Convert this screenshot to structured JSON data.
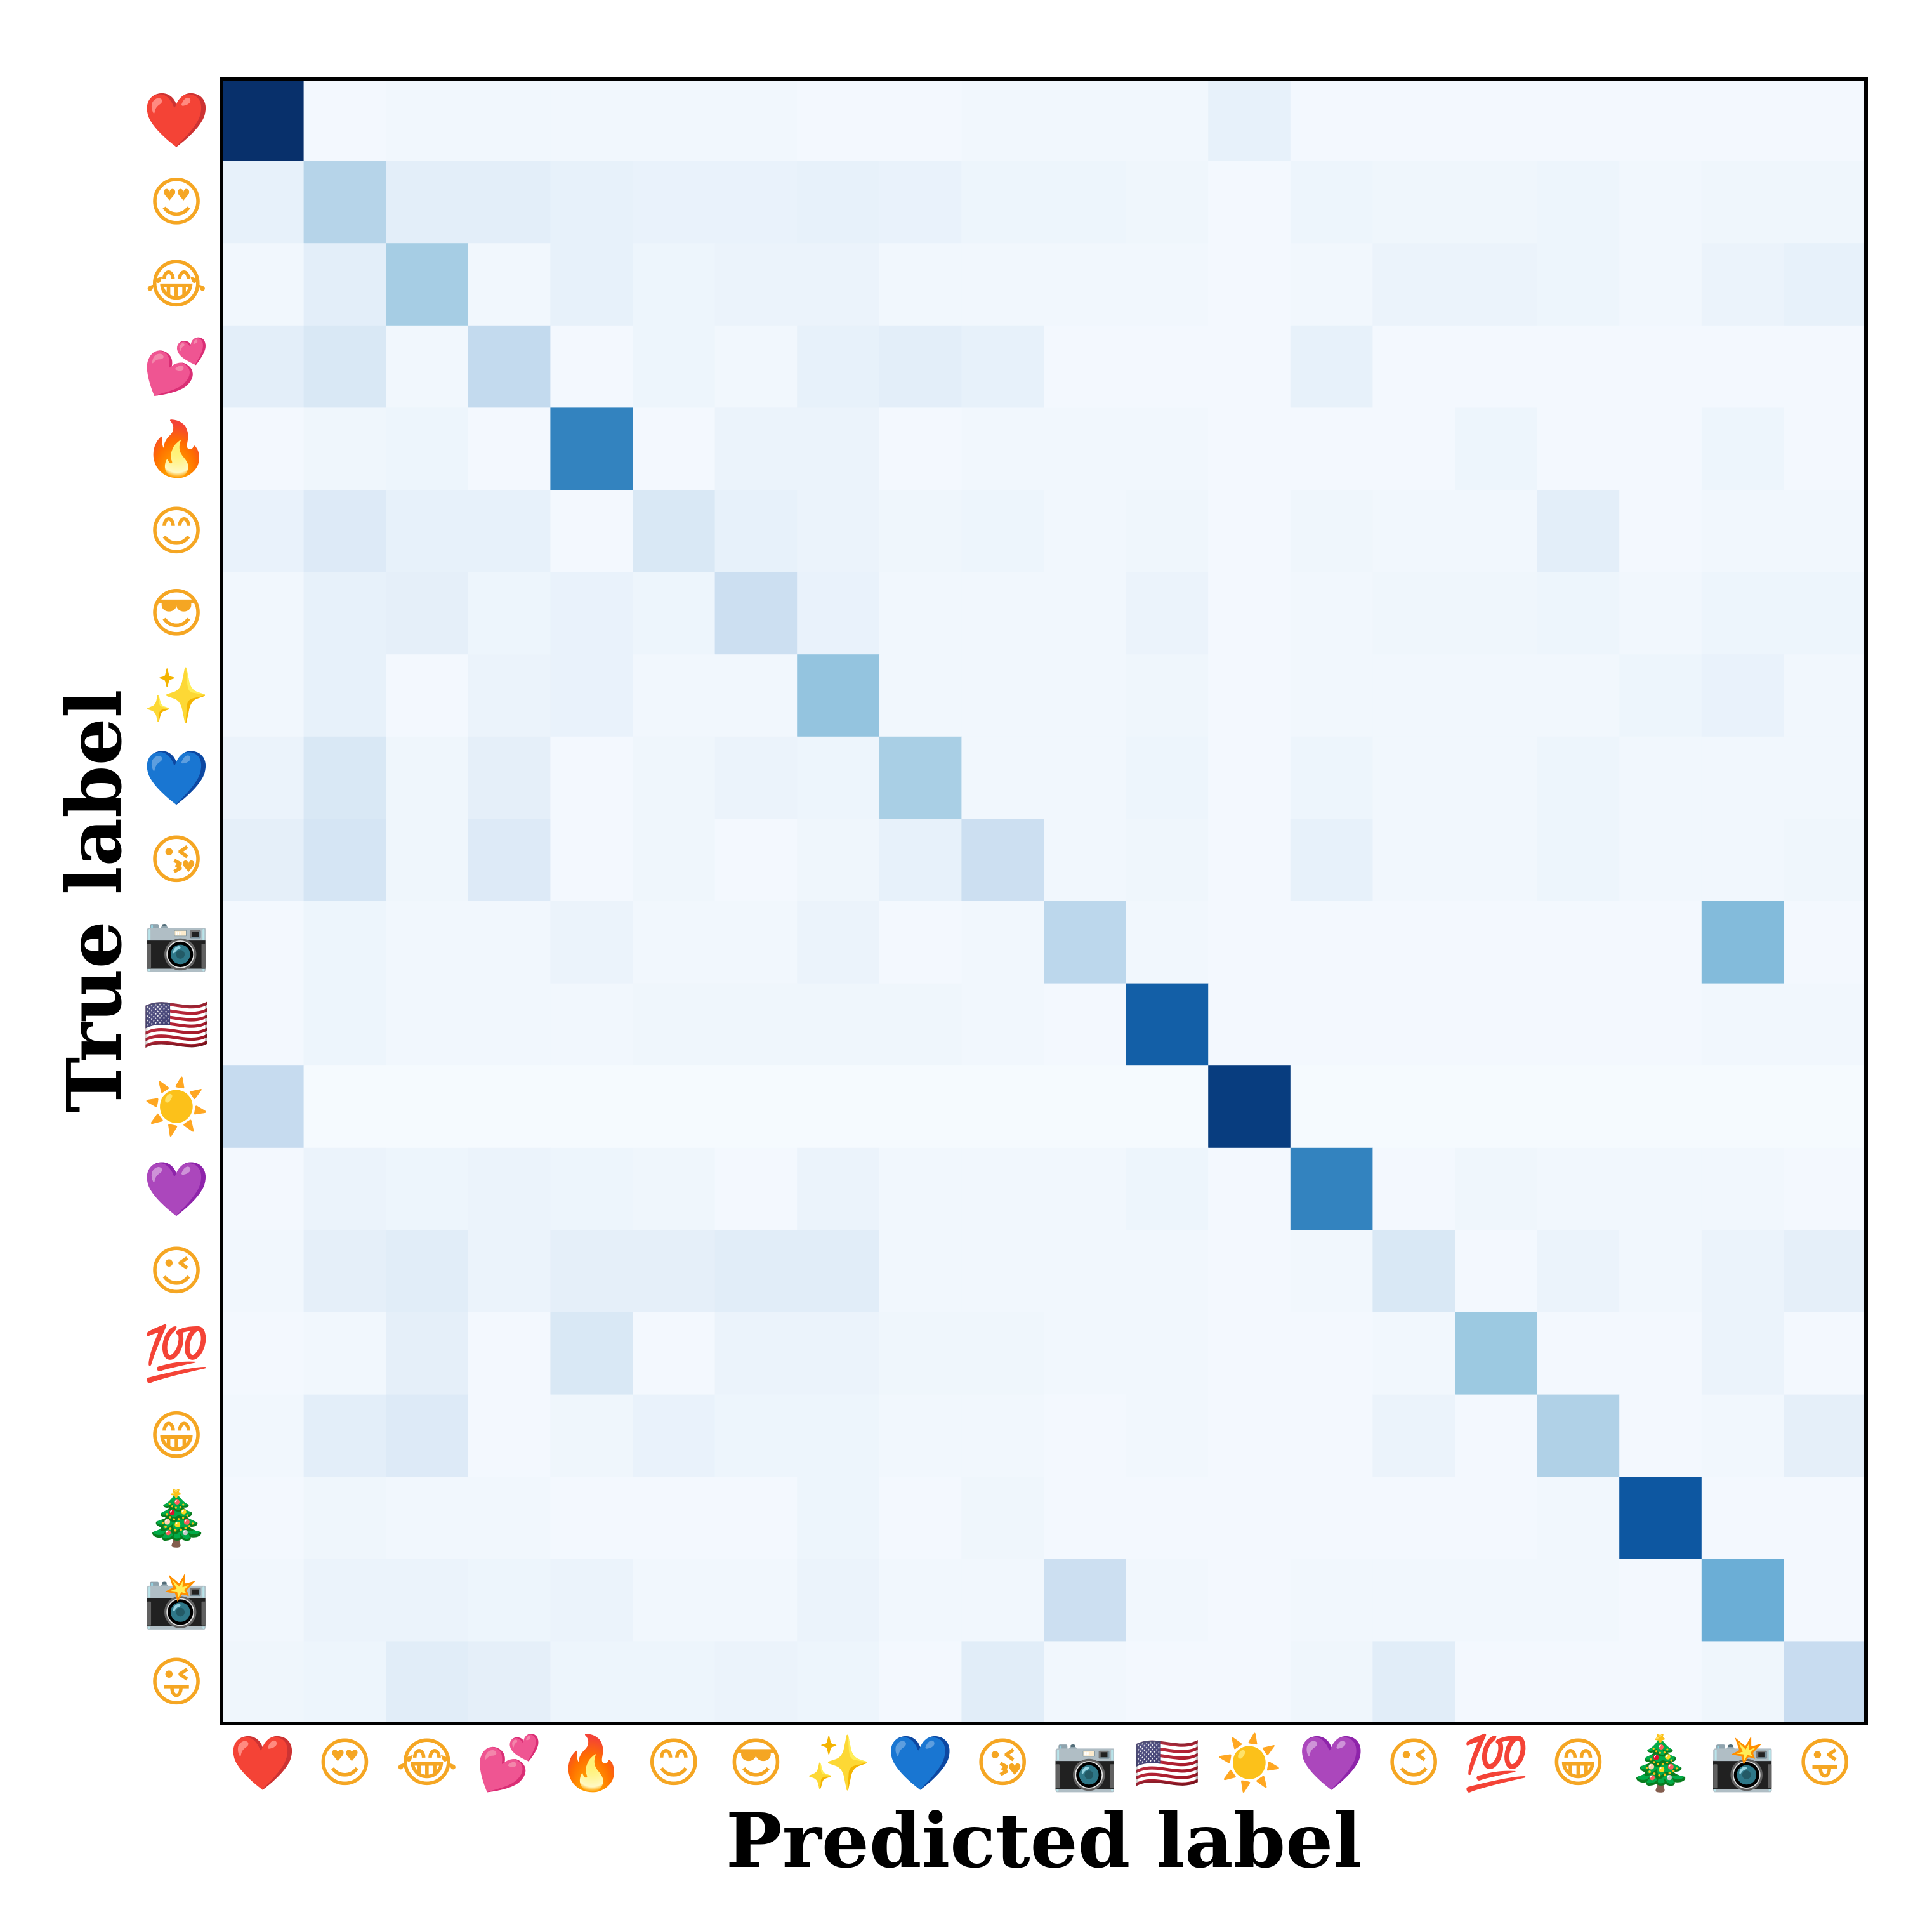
{
  "chart_data": {
    "type": "heatmap",
    "xlabel": "Predicted label",
    "ylabel": "True label",
    "labels": [
      {
        "glyph": "❤️",
        "icon": "red-heart-icon",
        "color": "#e5202e"
      },
      {
        "glyph": "😍",
        "icon": "heart-eyes-face-icon",
        "color": "#f5a623"
      },
      {
        "glyph": "😂",
        "icon": "tears-of-joy-face-icon",
        "color": "#f5a623"
      },
      {
        "glyph": "💕",
        "icon": "two-hearts-icon",
        "color": "#e8388f"
      },
      {
        "glyph": "🔥",
        "icon": "fire-icon",
        "color": "#f26a1b"
      },
      {
        "glyph": "😊",
        "icon": "smiling-face-icon",
        "color": "#f5a623"
      },
      {
        "glyph": "😎",
        "icon": "sunglasses-face-icon",
        "color": "#f5a623"
      },
      {
        "glyph": "✨",
        "icon": "sparkles-icon",
        "color": "#f2c94c"
      },
      {
        "glyph": "💙",
        "icon": "blue-heart-icon",
        "color": "#1a6ff0"
      },
      {
        "glyph": "😘",
        "icon": "kiss-face-icon",
        "color": "#f5a623"
      },
      {
        "glyph": "📷",
        "icon": "camera-icon",
        "color": "#555555"
      },
      {
        "glyph": "🇺🇸",
        "icon": "us-flag-icon",
        "color": "#b22234"
      },
      {
        "glyph": "☀️",
        "icon": "sun-icon",
        "color": "#f5b800"
      },
      {
        "glyph": "💜",
        "icon": "purple-heart-icon",
        "color": "#9b3be0"
      },
      {
        "glyph": "😉",
        "icon": "winking-face-icon",
        "color": "#f5a623"
      },
      {
        "glyph": "💯",
        "icon": "hundred-points-icon",
        "color": "#d0021b"
      },
      {
        "glyph": "😁",
        "icon": "grinning-face-icon",
        "color": "#f5a623"
      },
      {
        "glyph": "🎄",
        "icon": "christmas-tree-icon",
        "color": "#2e7d32"
      },
      {
        "glyph": "📸",
        "icon": "camera-with-flash-icon",
        "color": "#555555"
      },
      {
        "glyph": "😜",
        "icon": "winking-tongue-face-icon",
        "color": "#f5a623"
      }
    ],
    "color_scale": {
      "name": "Blues",
      "low": "#f7fbff",
      "high": "#08306b",
      "min": 0,
      "max": 1
    },
    "values": [
      [
        1.0,
        0.02,
        0.03,
        0.03,
        0.03,
        0.03,
        0.03,
        0.02,
        0.02,
        0.03,
        0.03,
        0.03,
        0.08,
        0.02,
        0.02,
        0.02,
        0.02,
        0.02,
        0.02,
        0.02
      ],
      [
        0.08,
        0.3,
        0.1,
        0.1,
        0.08,
        0.07,
        0.07,
        0.08,
        0.07,
        0.05,
        0.05,
        0.04,
        0.02,
        0.05,
        0.04,
        0.04,
        0.05,
        0.03,
        0.04,
        0.04
      ],
      [
        0.03,
        0.1,
        0.35,
        0.03,
        0.08,
        0.05,
        0.06,
        0.06,
        0.03,
        0.03,
        0.03,
        0.03,
        0.02,
        0.03,
        0.06,
        0.06,
        0.05,
        0.03,
        0.06,
        0.08
      ],
      [
        0.1,
        0.15,
        0.03,
        0.26,
        0.02,
        0.05,
        0.03,
        0.08,
        0.1,
        0.08,
        0.02,
        0.02,
        0.02,
        0.08,
        0.02,
        0.02,
        0.02,
        0.02,
        0.02,
        0.02
      ],
      [
        0.02,
        0.04,
        0.05,
        0.02,
        0.68,
        0.02,
        0.06,
        0.06,
        0.02,
        0.03,
        0.03,
        0.03,
        0.02,
        0.02,
        0.02,
        0.05,
        0.02,
        0.02,
        0.05,
        0.02
      ],
      [
        0.07,
        0.13,
        0.08,
        0.08,
        0.02,
        0.15,
        0.08,
        0.06,
        0.04,
        0.05,
        0.03,
        0.04,
        0.02,
        0.04,
        0.03,
        0.03,
        0.1,
        0.02,
        0.03,
        0.03
      ],
      [
        0.03,
        0.08,
        0.09,
        0.05,
        0.07,
        0.05,
        0.22,
        0.07,
        0.03,
        0.03,
        0.03,
        0.06,
        0.02,
        0.03,
        0.04,
        0.04,
        0.05,
        0.03,
        0.05,
        0.05
      ],
      [
        0.03,
        0.08,
        0.02,
        0.06,
        0.07,
        0.03,
        0.03,
        0.4,
        0.03,
        0.03,
        0.03,
        0.04,
        0.02,
        0.03,
        0.03,
        0.03,
        0.03,
        0.05,
        0.07,
        0.03
      ],
      [
        0.06,
        0.15,
        0.04,
        0.09,
        0.02,
        0.04,
        0.06,
        0.05,
        0.34,
        0.03,
        0.03,
        0.05,
        0.02,
        0.05,
        0.03,
        0.03,
        0.05,
        0.03,
        0.03,
        0.03
      ],
      [
        0.09,
        0.17,
        0.04,
        0.13,
        0.02,
        0.04,
        0.02,
        0.04,
        0.08,
        0.22,
        0.03,
        0.04,
        0.02,
        0.08,
        0.03,
        0.03,
        0.05,
        0.03,
        0.03,
        0.04
      ],
      [
        0.02,
        0.05,
        0.03,
        0.03,
        0.06,
        0.03,
        0.03,
        0.06,
        0.02,
        0.03,
        0.28,
        0.03,
        0.02,
        0.02,
        0.02,
        0.02,
        0.02,
        0.02,
        0.44,
        0.02
      ],
      [
        0.02,
        0.05,
        0.03,
        0.03,
        0.03,
        0.04,
        0.04,
        0.04,
        0.04,
        0.03,
        0.02,
        0.82,
        0.02,
        0.02,
        0.02,
        0.02,
        0.02,
        0.02,
        0.03,
        0.03
      ],
      [
        0.25,
        0.01,
        0.01,
        0.01,
        0.01,
        0.01,
        0.01,
        0.01,
        0.01,
        0.01,
        0.01,
        0.01,
        0.95,
        0.01,
        0.01,
        0.01,
        0.01,
        0.01,
        0.01,
        0.01
      ],
      [
        0.02,
        0.06,
        0.05,
        0.06,
        0.05,
        0.04,
        0.02,
        0.06,
        0.03,
        0.03,
        0.03,
        0.05,
        0.02,
        0.68,
        0.02,
        0.04,
        0.03,
        0.03,
        0.03,
        0.02
      ],
      [
        0.03,
        0.09,
        0.11,
        0.06,
        0.09,
        0.09,
        0.11,
        0.11,
        0.03,
        0.03,
        0.03,
        0.03,
        0.02,
        0.03,
        0.15,
        0.02,
        0.06,
        0.03,
        0.06,
        0.09
      ],
      [
        0.02,
        0.03,
        0.09,
        0.02,
        0.15,
        0.02,
        0.06,
        0.06,
        0.04,
        0.04,
        0.03,
        0.03,
        0.02,
        0.02,
        0.03,
        0.38,
        0.02,
        0.02,
        0.06,
        0.02
      ],
      [
        0.03,
        0.1,
        0.13,
        0.02,
        0.04,
        0.07,
        0.05,
        0.05,
        0.03,
        0.03,
        0.02,
        0.03,
        0.02,
        0.02,
        0.06,
        0.02,
        0.32,
        0.02,
        0.03,
        0.09
      ],
      [
        0.02,
        0.04,
        0.03,
        0.03,
        0.02,
        0.02,
        0.02,
        0.05,
        0.02,
        0.04,
        0.02,
        0.02,
        0.02,
        0.02,
        0.02,
        0.02,
        0.03,
        0.85,
        0.02,
        0.02
      ],
      [
        0.03,
        0.06,
        0.06,
        0.05,
        0.06,
        0.03,
        0.03,
        0.06,
        0.03,
        0.03,
        0.22,
        0.03,
        0.02,
        0.03,
        0.03,
        0.03,
        0.03,
        0.02,
        0.5,
        0.02
      ],
      [
        0.04,
        0.05,
        0.11,
        0.09,
        0.05,
        0.05,
        0.06,
        0.05,
        0.02,
        0.11,
        0.03,
        0.02,
        0.02,
        0.04,
        0.11,
        0.02,
        0.02,
        0.02,
        0.04,
        0.24
      ]
    ]
  }
}
